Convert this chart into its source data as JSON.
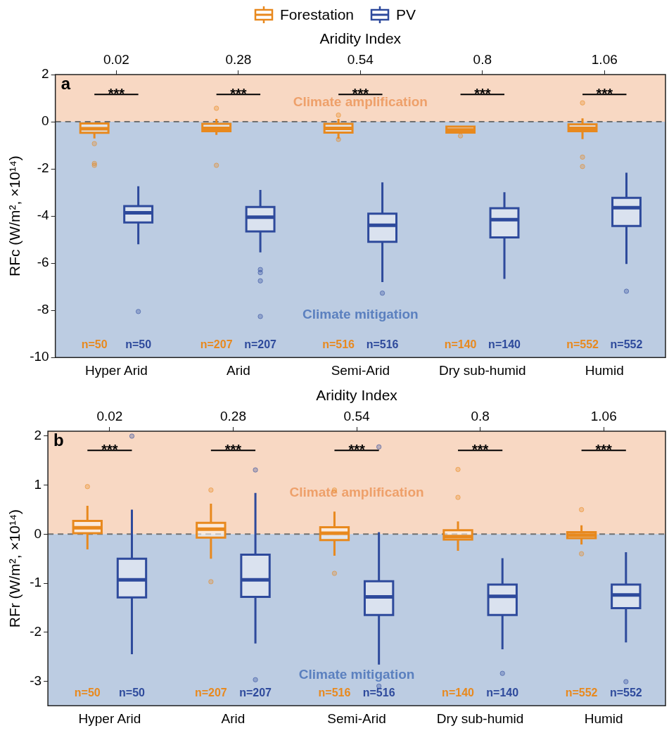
{
  "chart_data": [
    {
      "type": "box",
      "x2label": "Aridity Index",
      "ylabel": "RFc (W/m², ×10¹⁴)",
      "categories": [
        "Hyper Arid",
        "Arid",
        "Semi-Arid",
        "Dry sub-humid",
        "Humid"
      ],
      "x2lim": [
        -0.11,
        1.19
      ],
      "x2ticks": [
        0.02,
        0.28,
        0.54,
        0.8,
        1.06
      ],
      "ylim": [
        -10,
        2
      ],
      "yticks": [
        2,
        0,
        -2,
        -4,
        -6,
        -8,
        -10
      ],
      "legend": "top",
      "grid": false,
      "series": [
        {
          "name": "Forestation",
          "color": "#e8891e",
          "boxes": [
            {
              "low": -0.71,
              "q1": -0.47,
              "median": -0.3,
              "q3": -0.07,
              "high": -0.07,
              "outliers": [
                -0.93,
                -1.77,
                -1.85
              ]
            },
            {
              "low": -0.56,
              "q1": -0.4,
              "median": -0.28,
              "q3": -0.09,
              "high": 0.12,
              "outliers": [
                0.57,
                -1.85
              ]
            },
            {
              "low": -0.72,
              "q1": -0.46,
              "median": -0.28,
              "q3": -0.09,
              "high": 0.12,
              "outliers": [
                0.28,
                -0.75
              ]
            },
            {
              "low": -0.5,
              "q1": -0.46,
              "median": -0.35,
              "q3": -0.21,
              "high": -0.18,
              "outliers": [
                -0.6
              ]
            },
            {
              "low": -0.74,
              "q1": -0.4,
              "median": -0.28,
              "q3": -0.11,
              "high": 0.14,
              "outliers": [
                0.8,
                -1.5,
                -1.9
              ]
            }
          ]
        },
        {
          "name": "PV",
          "color": "#2e4a9c",
          "boxes": [
            {
              "low": -5.2,
              "q1": -4.27,
              "median": -3.86,
              "q3": -3.58,
              "high": -2.74,
              "outliers": [
                -8.05
              ]
            },
            {
              "low": -5.54,
              "q1": -4.65,
              "median": -4.05,
              "q3": -3.62,
              "high": -2.89,
              "outliers": [
                -6.27,
                -6.4,
                -6.75,
                -8.26
              ]
            },
            {
              "low": -6.8,
              "q1": -5.09,
              "median": -4.39,
              "q3": -3.9,
              "high": -2.57,
              "outliers": [
                -7.27
              ]
            },
            {
              "low": -6.67,
              "q1": -4.91,
              "median": -4.15,
              "q3": -3.67,
              "high": -2.99
            },
            {
              "low": -6.03,
              "q1": -4.42,
              "median": -3.65,
              "q3": -3.23,
              "high": -2.16,
              "outliers": [
                -7.19
              ]
            }
          ]
        }
      ],
      "ref_lines": [
        {
          "axis": "y",
          "value": 0,
          "color": "#707070",
          "line_style": "dashed"
        }
      ],
      "bands": [
        {
          "axis": "y",
          "from": 0,
          "to": 2,
          "label": "Climate amplification",
          "color": "#f8d8c3"
        },
        {
          "axis": "y",
          "from": -10,
          "to": 0,
          "label": "Climate mitigation",
          "color": "#bccce2"
        }
      ],
      "annotations": [
        "a",
        "***",
        "***",
        "***",
        "***",
        "***",
        "n=50",
        "n=50",
        "n=207",
        "n=207",
        "n=516",
        "n=516",
        "n=140",
        "n=140",
        "n=552",
        "n=552"
      ]
    },
    {
      "type": "box",
      "x2label": "Aridity Index",
      "ylabel": "RFr (W/m², ×10¹⁴)",
      "categories": [
        "Hyper Arid",
        "Arid",
        "Semi-Arid",
        "Dry sub-humid",
        "Humid"
      ],
      "x2lim": [
        -0.11,
        1.19
      ],
      "x2ticks": [
        0.02,
        0.28,
        0.54,
        0.8,
        1.06
      ],
      "ylim": [
        -3.5,
        2.1
      ],
      "yticks": [
        2,
        1,
        0,
        -1,
        -2,
        -3
      ],
      "grid": false,
      "series": [
        {
          "color": "#e8891e",
          "boxes": [
            {
              "low": -0.31,
              "q1": 0.02,
              "median": 0.13,
              "q3": 0.27,
              "high": 0.58,
              "outliers": [
                0.97
              ]
            },
            {
              "low": -0.5,
              "q1": -0.07,
              "median": 0.1,
              "q3": 0.23,
              "high": 0.62,
              "outliers": [
                -0.97,
                0.9
              ]
            },
            {
              "low": -0.44,
              "q1": -0.12,
              "median": 0.02,
              "q3": 0.14,
              "high": 0.46,
              "outliers": [
                0.9,
                -0.8
              ]
            },
            {
              "low": -0.34,
              "q1": -0.11,
              "median": -0.05,
              "q3": 0.08,
              "high": 0.26,
              "outliers": [
                1.32,
                0.75
              ]
            },
            {
              "low": -0.21,
              "q1": -0.08,
              "median": -0.02,
              "q3": 0.04,
              "high": 0.18,
              "outliers": [
                0.5,
                -0.4
              ]
            }
          ]
        },
        {
          "color": "#2e4a9c",
          "boxes": [
            {
              "low": -2.45,
              "q1": -1.29,
              "median": -0.93,
              "q3": -0.5,
              "high": 0.5,
              "outliers": [
                2.0
              ]
            },
            {
              "low": -2.23,
              "q1": -1.28,
              "median": -0.93,
              "q3": -0.42,
              "high": 0.84,
              "outliers": [
                1.31,
                -2.97
              ]
            },
            {
              "low": -2.66,
              "q1": -1.65,
              "median": -1.28,
              "q3": -0.96,
              "high": 0.04,
              "outliers": [
                1.78,
                -3.1
              ]
            },
            {
              "low": -2.35,
              "q1": -1.65,
              "median": -1.27,
              "q3": -1.03,
              "high": -0.49,
              "outliers": [
                -2.84
              ]
            },
            {
              "low": -2.21,
              "q1": -1.51,
              "median": -1.24,
              "q3": -1.03,
              "high": -0.37,
              "outliers": [
                -3.01
              ]
            }
          ]
        }
      ],
      "ref_lines": [
        {
          "axis": "y",
          "value": 0,
          "color": "#707070",
          "line_style": "dashed"
        }
      ],
      "bands": [
        {
          "axis": "y",
          "from": 0,
          "to": 2.1,
          "label": "Climate amplification",
          "color": "#f8d8c3"
        },
        {
          "axis": "y",
          "from": -3.5,
          "to": 0,
          "label": "Climate mitigation",
          "color": "#bccce2"
        }
      ],
      "annotations": [
        "b",
        "***",
        "***",
        "***",
        "***",
        "***",
        "n=50",
        "n=50",
        "n=207",
        "n=207",
        "n=516",
        "n=516",
        "n=140",
        "n=140",
        "n=552",
        "n=552"
      ]
    }
  ]
}
